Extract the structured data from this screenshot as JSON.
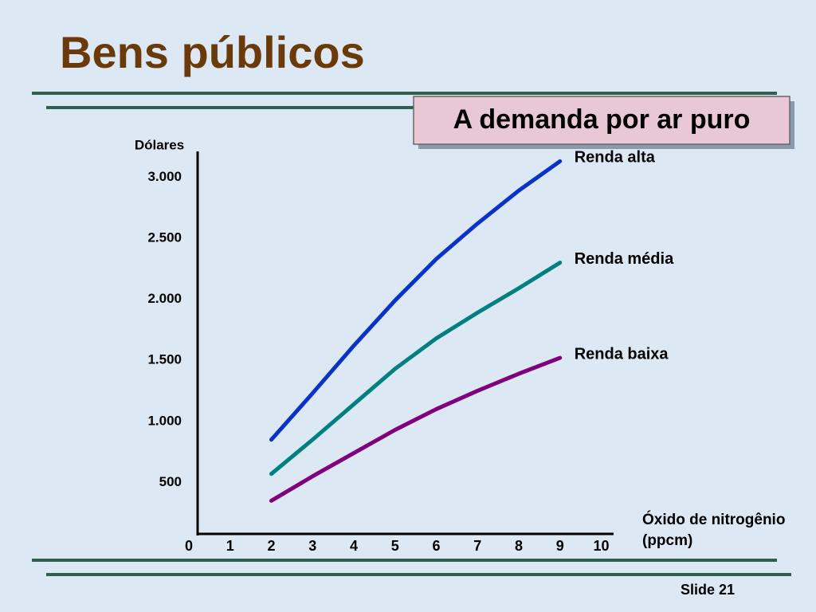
{
  "slide": {
    "title": "Bens públicos",
    "number": "Slide 21"
  },
  "chart_data": {
    "type": "line",
    "title": "A demanda por ar puro",
    "ylabel": "Dólares",
    "xlabel": "Óxido de nitrogênio (ppcm)",
    "x": [
      2,
      3,
      4,
      5,
      6,
      7,
      8,
      9
    ],
    "series": [
      {
        "name": "Renda alta",
        "color": "#0a32c8",
        "values": [
          850,
          1230,
          1620,
          1990,
          2330,
          2620,
          2890,
          3130
        ]
      },
      {
        "name": "Renda média",
        "color": "#008080",
        "values": [
          570,
          850,
          1140,
          1430,
          1680,
          1890,
          2090,
          2300
        ]
      },
      {
        "name": "Renda baixa",
        "color": "#800080",
        "values": [
          350,
          550,
          740,
          930,
          1100,
          1250,
          1390,
          1520
        ]
      }
    ],
    "xlim": [
      0,
      10.3
    ],
    "xticks": [
      0,
      1,
      2,
      3,
      4,
      5,
      6,
      7,
      8,
      9,
      10
    ],
    "ylim": [
      0,
      3250
    ],
    "yticks": [
      500,
      {
        "value": 1000,
        "label": "1.000"
      },
      {
        "value": 1500,
        "label": "1.500"
      },
      {
        "value": 2000,
        "label": "2.000"
      },
      {
        "value": 2500,
        "label": "2.500"
      },
      {
        "value": 3000,
        "label": "3.000"
      }
    ],
    "grid": false
  }
}
